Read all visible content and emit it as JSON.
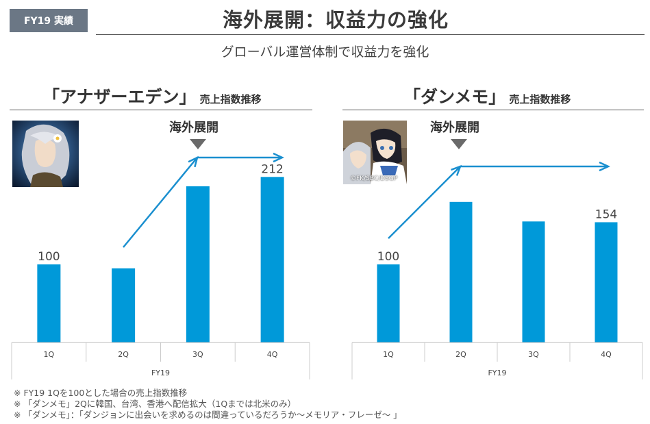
{
  "header": {
    "tag": "FY19 実績",
    "title": "海外展開：収益力の強化",
    "subtitle": "グローバル運営体制で収益力を強化"
  },
  "colors": {
    "bar": "#0099d9",
    "arrow": "#1a8fcf",
    "tag": "#6b7785",
    "marker": "#6a6a6a"
  },
  "panels": [
    {
      "title_main": "「アナザーエデン」",
      "title_sub": "売上指数推移",
      "marker_label": "海外展開",
      "icon": "game-icon-another-eden"
    },
    {
      "title_main": "「ダンメモ」",
      "title_sub": "売上指数推移",
      "marker_label": "海外展開",
      "icon": "game-icon-danmemo",
      "icon_caption": "©FK/SBC/DSGP"
    }
  ],
  "chart_data": [
    {
      "type": "bar",
      "categories": [
        "1Q",
        "2Q",
        "3Q",
        "4Q"
      ],
      "xlabel": "FY19",
      "values": [
        100,
        95,
        200,
        212
      ],
      "data_labels": [
        "100",
        "",
        "",
        "212"
      ],
      "ylim": [
        0,
        220
      ],
      "annotation": "海外展開",
      "annotation_between": [
        "2Q",
        "3Q"
      ]
    },
    {
      "type": "bar",
      "categories": [
        "1Q",
        "2Q",
        "3Q",
        "4Q"
      ],
      "xlabel": "FY19",
      "values": [
        100,
        180,
        155,
        154
      ],
      "data_labels": [
        "100",
        "",
        "",
        "154"
      ],
      "ylim": [
        0,
        220
      ],
      "annotation": "海外展開",
      "annotation_between": [
        "1Q",
        "2Q"
      ]
    }
  ],
  "footnotes": [
    "※ FY19 1Qを100とした場合の売上指数推移",
    "※ 「ダンメモ」2Qに韓国、台湾、香港へ配信拡大（1Qまでは北米のみ）",
    "※ 「ダンメモ」：「ダンジョンに出会いを求めるのは間違っているだろうか～メモリア・フレーゼ～ 」"
  ]
}
